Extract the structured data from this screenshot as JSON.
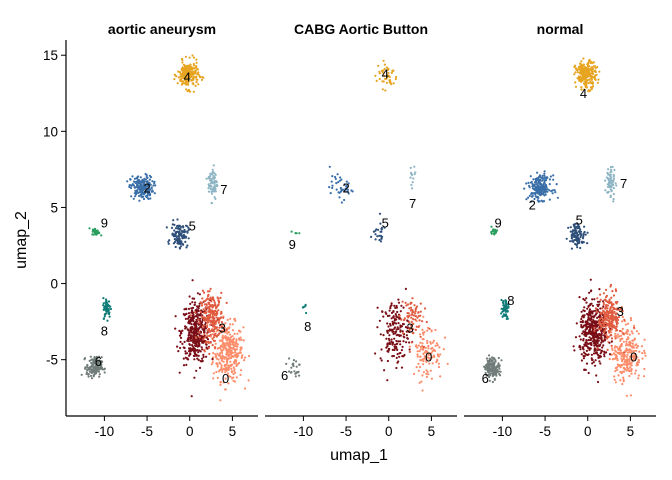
{
  "chart_data": {
    "type": "scatter",
    "xlabel": "umap_1",
    "ylabel": "umap_2",
    "xlim": [
      -14.5,
      8
    ],
    "ylim": [
      -8.7,
      16
    ],
    "xticks": [
      -10,
      -5,
      0,
      5
    ],
    "xtick_labels": [
      "-10",
      "-5",
      "0",
      "5"
    ],
    "yticks": [
      -5,
      0,
      5,
      10,
      15
    ],
    "ytick_labels": [
      "-5",
      "0",
      "5",
      "10",
      "15"
    ],
    "legend": "none",
    "grid": false,
    "panel_titles": [
      "aortic aneurysm",
      "CABG Aortic Button",
      "normal"
    ],
    "clusters": [
      {
        "id": "0",
        "color": "#FC8D6B",
        "center": [
          4.5,
          -4.5
        ],
        "spread": [
          1.6,
          1.7
        ]
      },
      {
        "id": "1",
        "color": "#7A0E16",
        "center": [
          0.7,
          -3.2
        ],
        "spread": [
          1.5,
          1.9
        ]
      },
      {
        "id": "2",
        "color": "#3A6FA8",
        "center": [
          -5.6,
          6.3
        ],
        "spread": [
          1.2,
          0.7
        ]
      },
      {
        "id": "3",
        "color": "#E05B3F",
        "center": [
          2.6,
          -2.2
        ],
        "spread": [
          1.2,
          1.4
        ]
      },
      {
        "id": "4",
        "color": "#E6A420",
        "center": [
          -0.2,
          13.7
        ],
        "spread": [
          1.1,
          0.8
        ]
      },
      {
        "id": "5",
        "color": "#2E4F7A",
        "center": [
          -1.2,
          3.2
        ],
        "spread": [
          0.9,
          0.7
        ]
      },
      {
        "id": "6",
        "color": "#717D7A",
        "center": [
          -11.2,
          -5.5
        ],
        "spread": [
          0.8,
          0.6
        ]
      },
      {
        "id": "7",
        "color": "#8EB5C4",
        "center": [
          2.7,
          6.6
        ],
        "spread": [
          0.5,
          1.0
        ]
      },
      {
        "id": "8",
        "color": "#107C78",
        "center": [
          -9.7,
          -1.6
        ],
        "spread": [
          0.4,
          0.6
        ]
      },
      {
        "id": "9",
        "color": "#2A9E5E",
        "center": [
          -11.0,
          3.4
        ],
        "spread": [
          0.4,
          0.2
        ]
      }
    ],
    "panels": [
      {
        "title": "aortic aneurysm",
        "label_positions": [
          {
            "text": "0",
            "x": 4.2,
            "y": -6.3
          },
          {
            "text": "3",
            "x": 3.8,
            "y": -3.0
          },
          {
            "text": "4",
            "x": -0.3,
            "y": 13.5
          },
          {
            "text": "2",
            "x": -5.0,
            "y": 6.2
          },
          {
            "text": "7",
            "x": 4.0,
            "y": 6.1
          },
          {
            "text": "5",
            "x": 0.3,
            "y": 3.7
          },
          {
            "text": "9",
            "x": -10.0,
            "y": 3.9
          },
          {
            "text": "8",
            "x": -10.0,
            "y": -3.2
          },
          {
            "text": "6",
            "x": -10.7,
            "y": -5.2
          }
        ]
      },
      {
        "title": "CABG Aortic Button",
        "label_positions": [
          {
            "text": "4",
            "x": -0.4,
            "y": 13.7
          },
          {
            "text": "2",
            "x": -5.0,
            "y": 6.2
          },
          {
            "text": "7",
            "x": 2.8,
            "y": 5.2
          },
          {
            "text": "5",
            "x": -0.4,
            "y": 3.9
          },
          {
            "text": "9",
            "x": -11.3,
            "y": 2.5
          },
          {
            "text": "8",
            "x": -9.5,
            "y": -2.9
          },
          {
            "text": "3",
            "x": 2.5,
            "y": -3.0
          },
          {
            "text": "0",
            "x": 4.7,
            "y": -4.9
          },
          {
            "text": "6",
            "x": -12.2,
            "y": -6.1
          }
        ]
      },
      {
        "title": "normal",
        "label_positions": [
          {
            "text": "4",
            "x": -0.5,
            "y": 12.4
          },
          {
            "text": "7",
            "x": 4.2,
            "y": 6.5
          },
          {
            "text": "2",
            "x": -6.5,
            "y": 5.1
          },
          {
            "text": "9",
            "x": -10.5,
            "y": 3.9
          },
          {
            "text": "5",
            "x": -1.0,
            "y": 4.1
          },
          {
            "text": "8",
            "x": -9.0,
            "y": -1.2
          },
          {
            "text": "3",
            "x": 3.8,
            "y": -1.9
          },
          {
            "text": "0",
            "x": 5.4,
            "y": -4.9
          },
          {
            "text": "6",
            "x": -12.0,
            "y": -6.3
          }
        ]
      }
    ]
  }
}
